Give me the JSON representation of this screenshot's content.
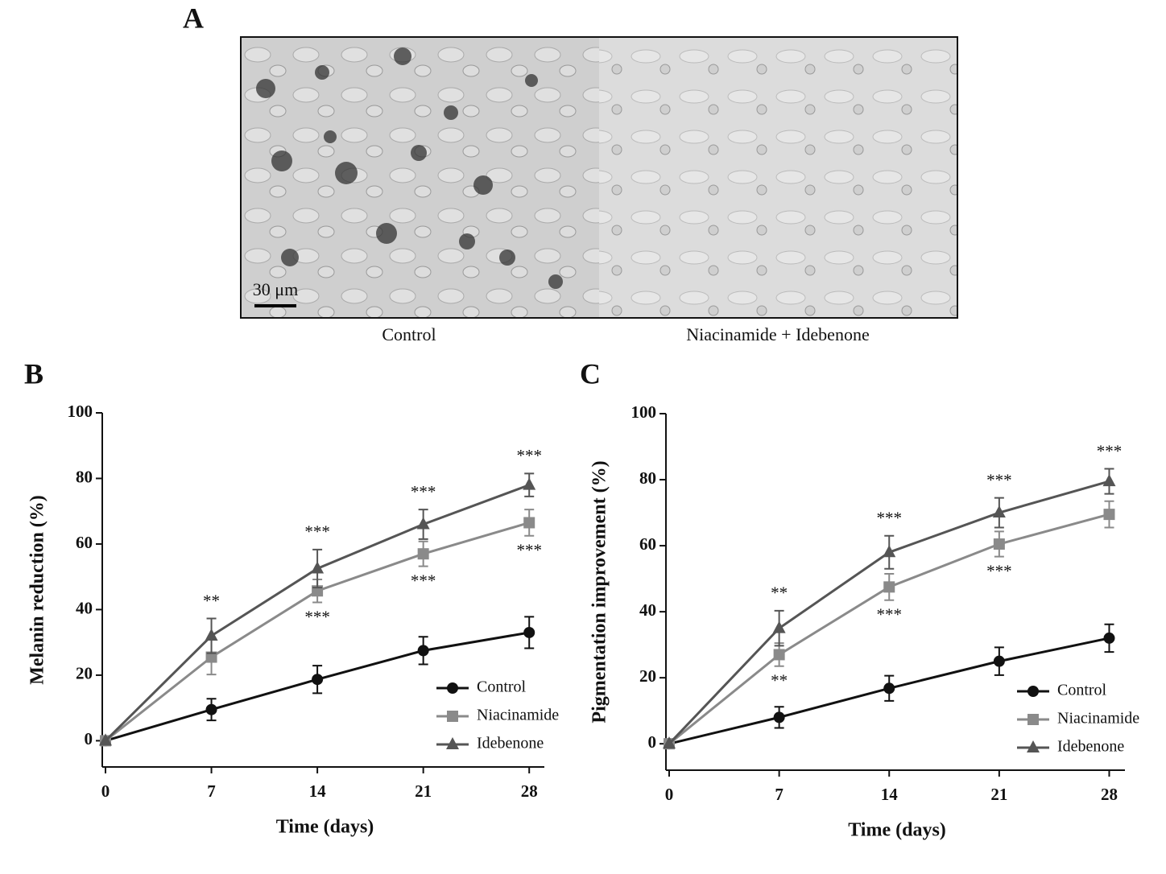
{
  "image_panel": {
    "label": "A",
    "scale_bar": "30 μm",
    "captions": [
      "Control",
      "Niacinamide + Idebenone"
    ]
  },
  "chart_data": [
    {
      "type": "line",
      "panel_label": "B",
      "x_label": "Time (days)",
      "y_label": "Melanin reduction (%)",
      "x": [
        0,
        7,
        14,
        21,
        28
      ],
      "xlim": [
        0,
        29
      ],
      "xticks": [
        0,
        7,
        14,
        21,
        28
      ],
      "ylim": [
        -8,
        100
      ],
      "yticks": [
        0,
        20,
        40,
        60,
        80,
        100
      ],
      "legend": "lower right",
      "series": [
        {
          "name": "Control",
          "color": "#111111",
          "marker": "circle",
          "values": [
            0,
            9.5,
            18.7,
            27.5,
            33
          ],
          "errors": [
            0,
            3.3,
            4.2,
            4.2,
            4.8
          ],
          "annotations": [
            null,
            null,
            null,
            null,
            null
          ],
          "annotation_side": "above"
        },
        {
          "name": "Niacinamide",
          "color": "#8a8a8a",
          "marker": "square",
          "values": [
            0,
            25.5,
            45.7,
            57,
            66.5
          ],
          "errors": [
            0,
            5.3,
            3.5,
            3.8,
            4
          ],
          "annotations": [
            null,
            null,
            "***",
            "***",
            "***"
          ],
          "annotation_side": "below"
        },
        {
          "name": "Idebenone",
          "color": "#555555",
          "marker": "triangle",
          "values": [
            0,
            32,
            52.5,
            66,
            78
          ],
          "errors": [
            0,
            5.3,
            5.8,
            4.5,
            3.5
          ],
          "annotations": [
            null,
            "**",
            "***",
            "***",
            "***"
          ],
          "annotation_side": "above"
        }
      ]
    },
    {
      "type": "line",
      "panel_label": "C",
      "x_label": "Time (days)",
      "y_label": "Pigmentation improvement (%)",
      "x": [
        0,
        7,
        14,
        21,
        28
      ],
      "xlim": [
        0,
        29
      ],
      "xticks": [
        0,
        7,
        14,
        21,
        28
      ],
      "ylim": [
        -8,
        100
      ],
      "yticks": [
        0,
        20,
        40,
        60,
        80,
        100
      ],
      "legend": "lower right",
      "series": [
        {
          "name": "Control",
          "color": "#111111",
          "marker": "circle",
          "values": [
            0,
            8,
            16.8,
            25,
            32
          ],
          "errors": [
            0,
            3.2,
            3.8,
            4.2,
            4.2
          ],
          "annotations": [
            null,
            null,
            null,
            null,
            null
          ],
          "annotation_side": "above"
        },
        {
          "name": "Niacinamide",
          "color": "#8a8a8a",
          "marker": "square",
          "values": [
            0,
            27,
            47.5,
            60.5,
            69.5
          ],
          "errors": [
            0,
            3.5,
            4,
            3.8,
            4
          ],
          "annotations": [
            null,
            "**",
            "***",
            "***",
            null
          ],
          "annotation_side": "below"
        },
        {
          "name": "Idebenone",
          "color": "#555555",
          "marker": "triangle",
          "values": [
            0,
            35,
            58,
            70,
            79.5
          ],
          "errors": [
            0,
            5.3,
            5,
            4.5,
            3.8
          ],
          "annotations": [
            null,
            "**",
            "***",
            "***",
            "***"
          ],
          "annotation_side": "above"
        }
      ]
    }
  ]
}
